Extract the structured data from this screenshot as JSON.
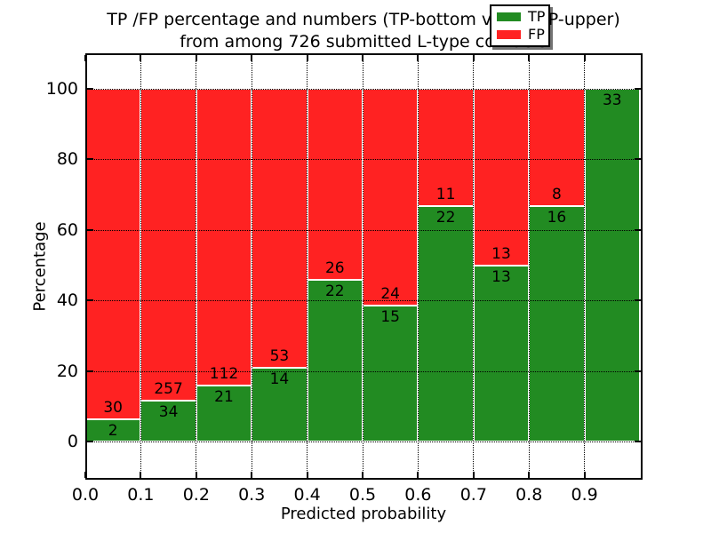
{
  "figure": {
    "title_line1": "TP /FP percentage and numbers (TP-bottom value, FP-upper)",
    "title_line2": "from among 726 submitted L-type contacts"
  },
  "axes": {
    "x_label": "Predicted probability",
    "y_label": "Percentage",
    "x_tick_labels": [
      "0.0",
      "0.1",
      "0.2",
      "0.3",
      "0.4",
      "0.5",
      "0.6",
      "0.7",
      "0.8",
      "0.9"
    ],
    "y_tick_labels": [
      "0",
      "20",
      "40",
      "60",
      "80",
      "100"
    ],
    "y_tick_values": [
      0,
      20,
      40,
      60,
      80,
      100
    ]
  },
  "legend": {
    "entries": [
      {
        "label": "TP",
        "color": "#228B22"
      },
      {
        "label": "FP",
        "color": "#FF2222"
      }
    ]
  },
  "chart_data": {
    "type": "bar",
    "stacked": true,
    "normalized": "each probability bin scaled to 100%; labels show raw counts (TP bottom, FP upper)",
    "title": "TP /FP percentage and numbers (TP-bottom value, FP-upper) from among 726 submitted L-type contacts",
    "xlabel": "Predicted probability",
    "ylabel": "Percentage",
    "total_contacts": 726,
    "categories": [
      "0.0-0.1",
      "0.1-0.2",
      "0.2-0.3",
      "0.3-0.4",
      "0.4-0.5",
      "0.5-0.6",
      "0.6-0.7",
      "0.7-0.8",
      "0.8-0.9",
      "0.9-1.0"
    ],
    "series": [
      {
        "name": "TP",
        "color": "#228B22",
        "counts": [
          2,
          34,
          21,
          14,
          22,
          15,
          22,
          13,
          16,
          33
        ],
        "percent": [
          6.25,
          11.68,
          15.79,
          20.9,
          45.83,
          38.46,
          66.67,
          50.0,
          66.67,
          100.0
        ]
      },
      {
        "name": "FP",
        "color": "#FF2222",
        "counts": [
          30,
          257,
          112,
          53,
          26,
          24,
          11,
          13,
          8,
          0
        ],
        "percent": [
          93.75,
          88.32,
          84.21,
          79.1,
          54.17,
          61.54,
          33.33,
          50.0,
          33.33,
          0.0
        ]
      }
    ],
    "xlim": [
      0.0,
      1.005
    ],
    "ylim": [
      -10.8,
      110.1
    ],
    "grid": "dotted",
    "legend_position": "upper right"
  }
}
